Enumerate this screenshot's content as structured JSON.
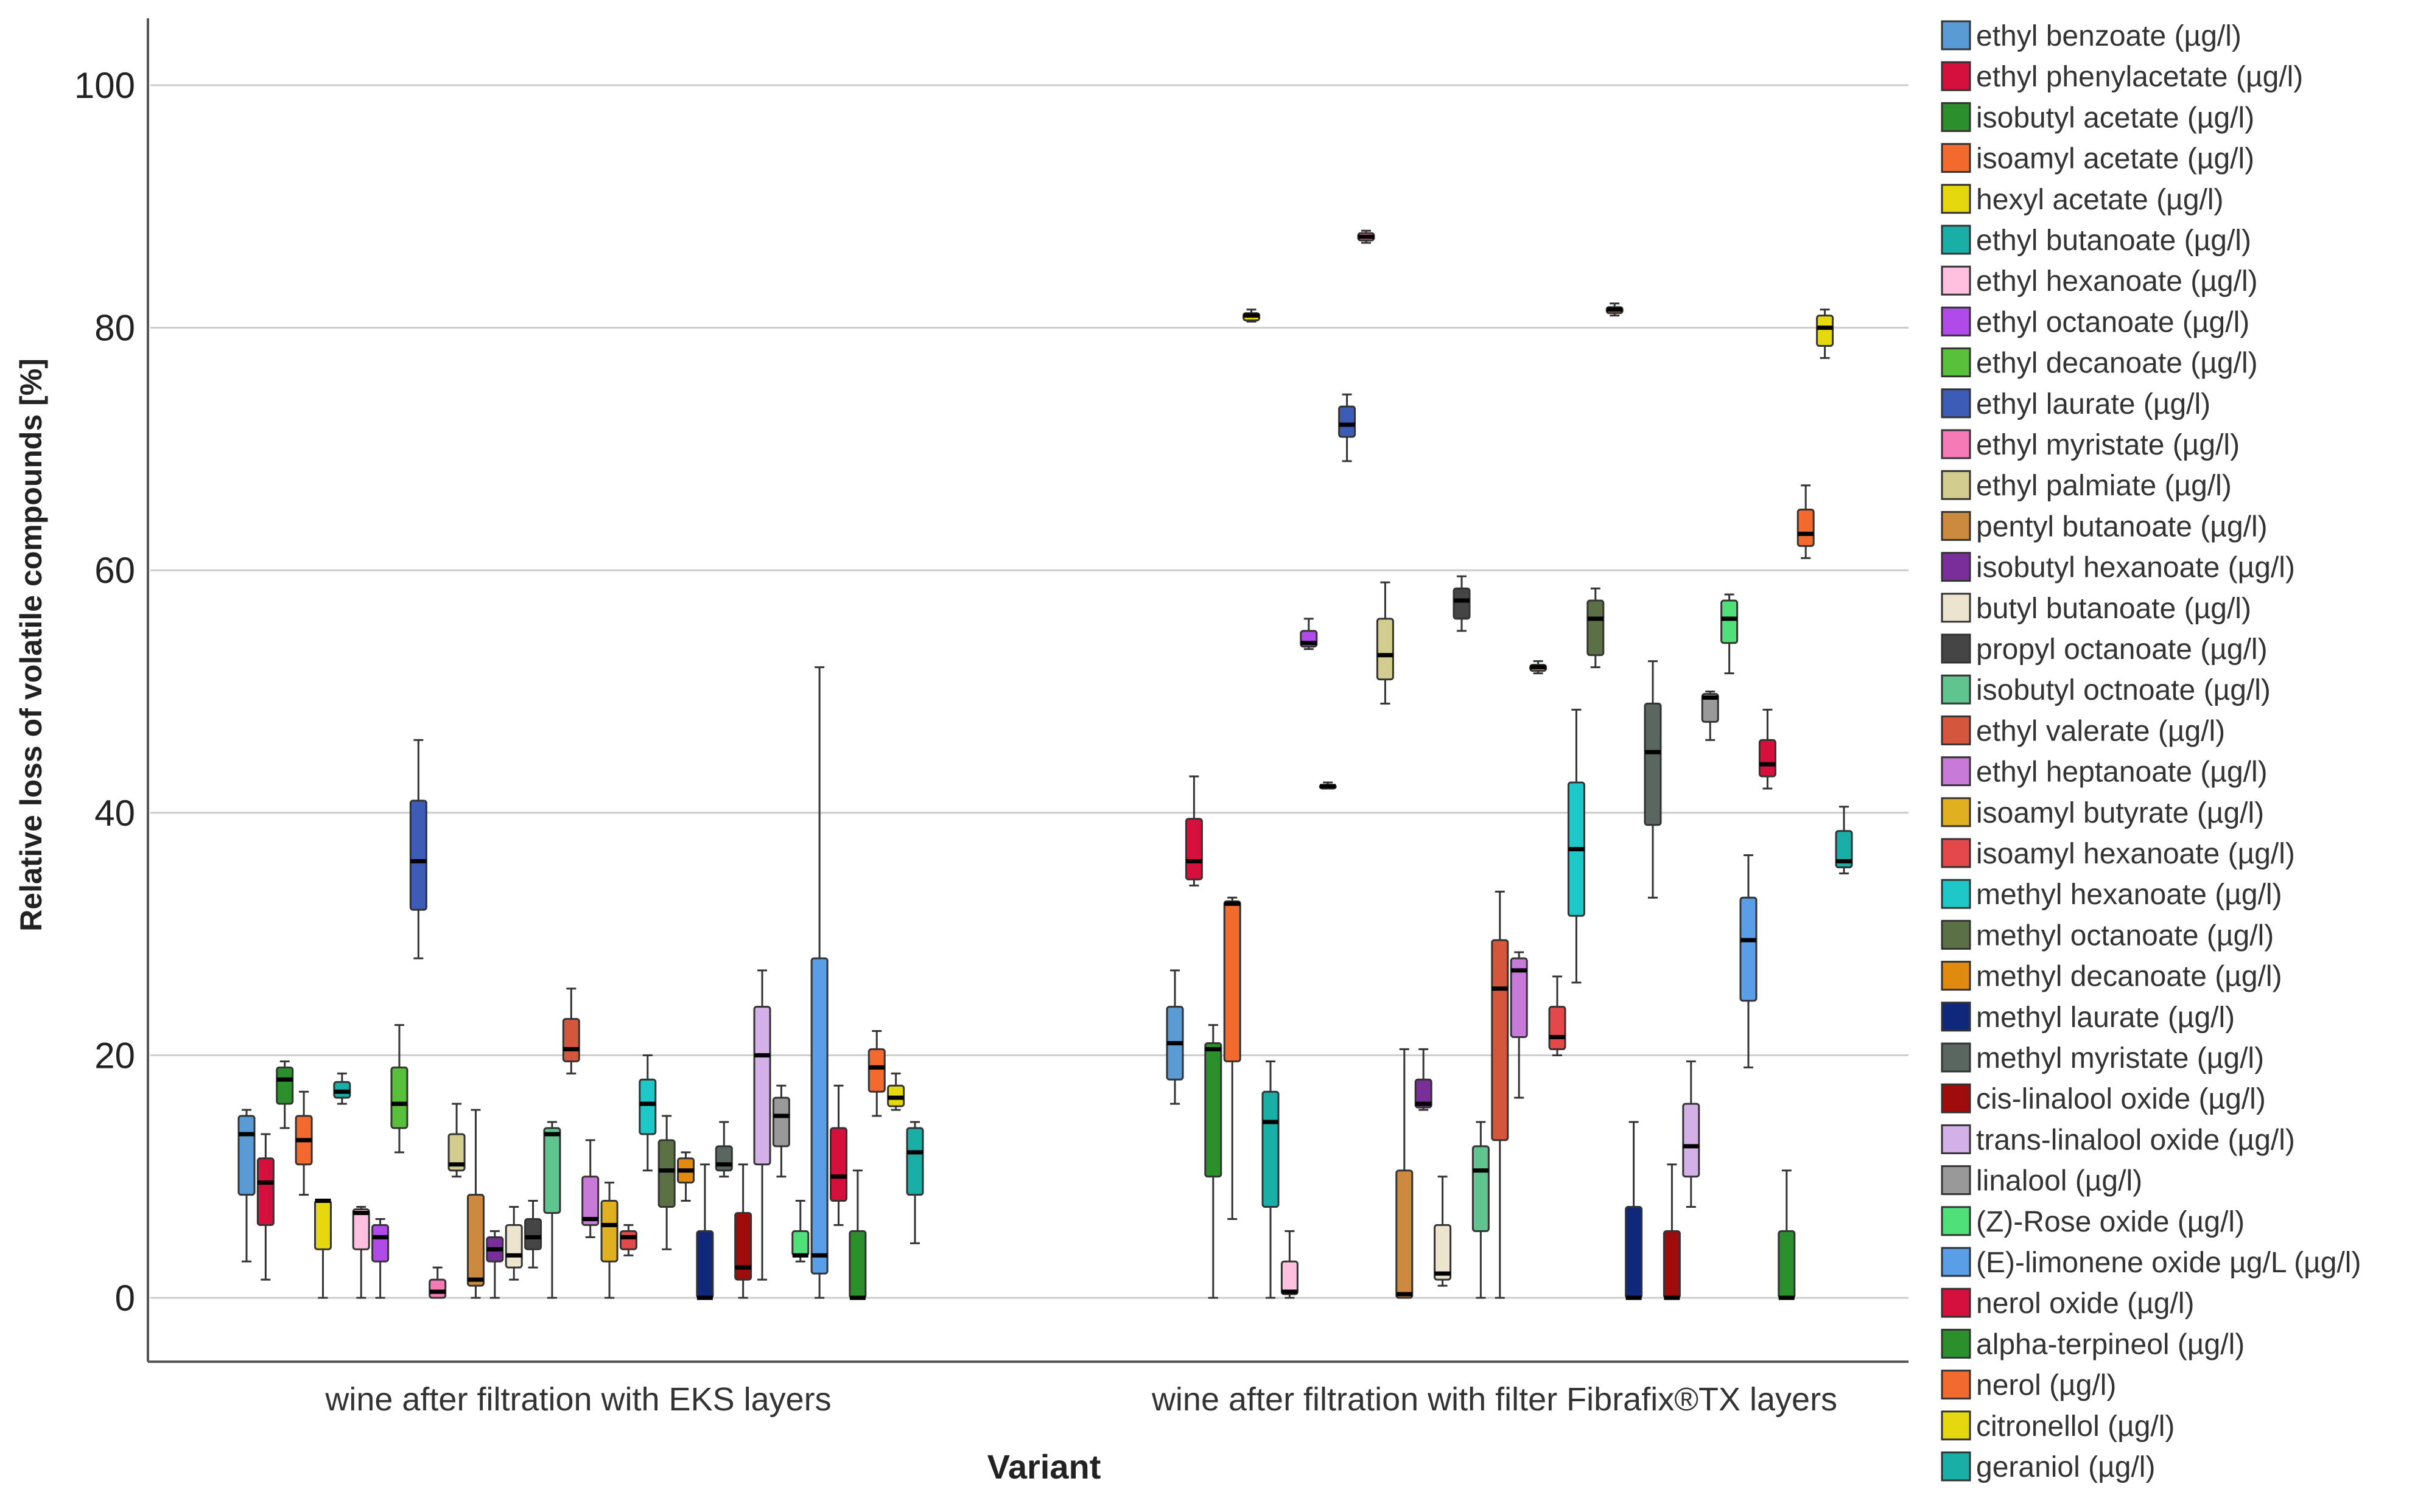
{
  "chart_data": {
    "type": "boxplot",
    "title": "",
    "xlabel": "Variant",
    "ylabel": "Relative loss of volatile compounds [%]",
    "ylim": [
      -5.3,
      106
    ],
    "yticks": [
      0,
      20,
      40,
      60,
      80,
      100
    ],
    "grid": true,
    "legend_position": "right",
    "categories": [
      "wine after filtration with EKS layers",
      "wine after filtration with filter  Fibrafix®TX layers"
    ],
    "series": [
      {
        "name": "ethyl benzoate (µg/l)",
        "color": "#5b9bd5",
        "groups": [
          {
            "min": 3,
            "q1": 8.5,
            "median": 13.5,
            "q3": 15,
            "max": 15.5
          },
          {
            "min": 16,
            "q1": 18,
            "median": 21,
            "q3": 24,
            "max": 27
          }
        ]
      },
      {
        "name": "ethyl phenylacetate (µg/l)",
        "color": "#d6103c",
        "groups": [
          {
            "min": 1.5,
            "q1": 6,
            "median": 9.5,
            "q3": 11.5,
            "max": 13.5
          },
          {
            "min": 34,
            "q1": 34.5,
            "median": 36,
            "q3": 39.5,
            "max": 43
          }
        ]
      },
      {
        "name": "isobutyl acetate (µg/l)",
        "color": "#2b8f2b",
        "groups": [
          {
            "min": 14,
            "q1": 16,
            "median": 18,
            "q3": 19,
            "max": 19.5
          },
          {
            "min": 0,
            "q1": 10,
            "median": 20.5,
            "q3": 21,
            "max": 22.5
          }
        ]
      },
      {
        "name": "isoamyl acetate (µg/l)",
        "color": "#f26a2e",
        "groups": [
          {
            "min": 8.5,
            "q1": 11,
            "median": 13,
            "q3": 15,
            "max": 17
          },
          {
            "min": 6.5,
            "q1": 19.5,
            "median": 32.5,
            "q3": 32.7,
            "max": 33
          }
        ]
      },
      {
        "name": "hexyl acetate (µg/l)",
        "color": "#e5d80e",
        "groups": [
          {
            "min": 0,
            "q1": 4,
            "median": 8,
            "q3": 8,
            "max": 8
          },
          {
            "min": 80.5,
            "q1": 80.6,
            "median": 81,
            "q3": 81.2,
            "max": 81.5
          }
        ]
      },
      {
        "name": "ethyl butanoate (µg/l)",
        "color": "#1aafa6",
        "groups": [
          {
            "min": 16,
            "q1": 16.5,
            "median": 17,
            "q3": 17.8,
            "max": 18.5
          },
          {
            "min": 0,
            "q1": 7.5,
            "median": 14.5,
            "q3": 17,
            "max": 19.5
          }
        ]
      },
      {
        "name": "ethyl hexanoate (µg/l)",
        "color": "#ffc0e0",
        "groups": [
          {
            "min": 0,
            "q1": 4,
            "median": 7,
            "q3": 7.3,
            "max": 7.5
          },
          {
            "min": 0,
            "q1": 0.3,
            "median": 0.5,
            "q3": 3,
            "max": 5.5
          }
        ]
      },
      {
        "name": "ethyl octanoate (µg/l)",
        "color": "#b04ae8",
        "groups": [
          {
            "min": 0,
            "q1": 3,
            "median": 5,
            "q3": 6,
            "max": 6.5
          },
          {
            "min": 53.5,
            "q1": 53.7,
            "median": 54,
            "q3": 55,
            "max": 56
          }
        ]
      },
      {
        "name": "ethyl decanoate (µg/l)",
        "color": "#58c03a",
        "groups": [
          {
            "min": 12,
            "q1": 14,
            "median": 16,
            "q3": 19,
            "max": 22.5
          },
          {
            "min": 42,
            "q1": 42,
            "median": 42.2,
            "q3": 42.3,
            "max": 42.5
          }
        ]
      },
      {
        "name": "ethyl laurate (µg/l)",
        "color": "#3c5cb8",
        "groups": [
          {
            "min": 28,
            "q1": 32,
            "median": 36,
            "q3": 41,
            "max": 46
          },
          {
            "min": 69,
            "q1": 71,
            "median": 72,
            "q3": 73.5,
            "max": 74.5
          }
        ]
      },
      {
        "name": "ethyl myristate (µg/l)",
        "color": "#f57ab5",
        "groups": [
          {
            "min": 0,
            "q1": 0,
            "median": 0.5,
            "q3": 1.5,
            "max": 2.5
          },
          {
            "min": 87,
            "q1": 87.2,
            "median": 87.5,
            "q3": 87.8,
            "max": 88
          }
        ]
      },
      {
        "name": "ethyl palmiate (µg/l)",
        "color": "#d2cd8e",
        "groups": [
          {
            "min": 10,
            "q1": 10.5,
            "median": 11,
            "q3": 13.5,
            "max": 16
          },
          {
            "min": 49,
            "q1": 51,
            "median": 53,
            "q3": 56,
            "max": 59
          }
        ]
      },
      {
        "name": "pentyl butanoate (µg/l)",
        "color": "#cc8a3e",
        "groups": [
          {
            "min": 0,
            "q1": 1,
            "median": 1.5,
            "q3": 8.5,
            "max": 15.5
          },
          {
            "min": 0,
            "q1": 0,
            "median": 0.3,
            "q3": 10.5,
            "max": 20.5
          }
        ]
      },
      {
        "name": "isobutyl hexanoate (µg/l)",
        "color": "#7a2e9a",
        "groups": [
          {
            "min": 0,
            "q1": 3,
            "median": 4,
            "q3": 5,
            "max": 5.5
          },
          {
            "min": 15.5,
            "q1": 15.7,
            "median": 16,
            "q3": 18,
            "max": 20.5
          }
        ]
      },
      {
        "name": "butyl butanoate (µg/l)",
        "color": "#ece4cf",
        "groups": [
          {
            "min": 1.5,
            "q1": 2.5,
            "median": 3.5,
            "q3": 6,
            "max": 7.5
          },
          {
            "min": 1,
            "q1": 1.5,
            "median": 2,
            "q3": 6,
            "max": 10
          }
        ]
      },
      {
        "name": "propyl octanoate (µg/l)",
        "color": "#454545",
        "groups": [
          {
            "min": 2.5,
            "q1": 4,
            "median": 5,
            "q3": 6.5,
            "max": 8
          },
          {
            "min": 55,
            "q1": 56,
            "median": 57.5,
            "q3": 58.5,
            "max": 59.5
          }
        ]
      },
      {
        "name": "isobutyl octnoate (µg/l)",
        "color": "#5fc48e",
        "groups": [
          {
            "min": 0,
            "q1": 7,
            "median": 13.5,
            "q3": 14,
            "max": 14.5
          },
          {
            "min": 0,
            "q1": 5.5,
            "median": 10.5,
            "q3": 12.5,
            "max": 14.5
          }
        ]
      },
      {
        "name": "ethyl valerate (µg/l)",
        "color": "#d4573d",
        "groups": [
          {
            "min": 18.5,
            "q1": 19.5,
            "median": 20.5,
            "q3": 23,
            "max": 25.5
          },
          {
            "min": 0,
            "q1": 13,
            "median": 25.5,
            "q3": 29.5,
            "max": 33.5
          }
        ]
      },
      {
        "name": "ethyl heptanoate (µg/l)",
        "color": "#c77ad8",
        "groups": [
          {
            "min": 5,
            "q1": 6,
            "median": 6.5,
            "q3": 10,
            "max": 13
          },
          {
            "min": 16.5,
            "q1": 21.5,
            "median": 27,
            "q3": 28,
            "max": 28.5
          }
        ]
      },
      {
        "name": "isoamyl butyrate (µg/l)",
        "color": "#e0b020",
        "groups": [
          {
            "min": 0,
            "q1": 3,
            "median": 6,
            "q3": 8,
            "max": 9.5
          },
          {
            "min": 51.5,
            "q1": 51.7,
            "median": 52,
            "q3": 52.2,
            "max": 52.5
          }
        ]
      },
      {
        "name": "isoamyl hexanoate (µg/l)",
        "color": "#e5484a",
        "groups": [
          {
            "min": 3.5,
            "q1": 4,
            "median": 5,
            "q3": 5.5,
            "max": 6
          },
          {
            "min": 20,
            "q1": 20.5,
            "median": 21.5,
            "q3": 24,
            "max": 26.5
          }
        ]
      },
      {
        "name": "methyl hexanoate (µg/l)",
        "color": "#1ec8c8",
        "groups": [
          {
            "min": 10.5,
            "q1": 13.5,
            "median": 16,
            "q3": 18,
            "max": 20
          },
          {
            "min": 26,
            "q1": 31.5,
            "median": 37,
            "q3": 42.5,
            "max": 48.5
          }
        ]
      },
      {
        "name": "methyl octanoate (µg/l)",
        "color": "#5c7045",
        "groups": [
          {
            "min": 4,
            "q1": 7.5,
            "median": 10.5,
            "q3": 13,
            "max": 15
          },
          {
            "min": 52,
            "q1": 53,
            "median": 56,
            "q3": 57.5,
            "max": 58.5
          }
        ]
      },
      {
        "name": "methyl decanoate (µg/l)",
        "color": "#e08a10",
        "groups": [
          {
            "min": 8,
            "q1": 9.5,
            "median": 10.5,
            "q3": 11.5,
            "max": 12
          },
          {
            "min": 81,
            "q1": 81.2,
            "median": 81.5,
            "q3": 81.7,
            "max": 82
          }
        ]
      },
      {
        "name": "methyl laurate (µg/l)",
        "color": "#10287a",
        "groups": [
          {
            "min": 0,
            "q1": 0,
            "median": 0,
            "q3": 5.5,
            "max": 11
          },
          {
            "min": 0,
            "q1": 0,
            "median": 0,
            "q3": 7.5,
            "max": 14.5
          }
        ]
      },
      {
        "name": "methyl myristate (µg/l)",
        "color": "#5a6660",
        "groups": [
          {
            "min": 10,
            "q1": 10.5,
            "median": 11,
            "q3": 12.5,
            "max": 14.5
          },
          {
            "min": 33,
            "q1": 39,
            "median": 45,
            "q3": 49,
            "max": 52.5
          }
        ]
      },
      {
        "name": "cis-linalool oxide (µg/l)",
        "color": "#a00c0c",
        "groups": [
          {
            "min": 0,
            "q1": 1.5,
            "median": 2.5,
            "q3": 7,
            "max": 11
          },
          {
            "min": 0,
            "q1": 0,
            "median": 0,
            "q3": 5.5,
            "max": 11
          }
        ]
      },
      {
        "name": "trans-linalool oxide (µg/l)",
        "color": "#d4b0e8",
        "groups": [
          {
            "min": 1.5,
            "q1": 11,
            "median": 20,
            "q3": 24,
            "max": 27
          },
          {
            "min": 7.5,
            "q1": 10,
            "median": 12.5,
            "q3": 16,
            "max": 19.5
          }
        ]
      },
      {
        "name": "linalool (µg/l)",
        "color": "#999999",
        "groups": [
          {
            "min": 10,
            "q1": 12.5,
            "median": 15,
            "q3": 16.5,
            "max": 17.5
          },
          {
            "min": 46,
            "q1": 47.5,
            "median": 49.5,
            "q3": 49.8,
            "max": 50
          }
        ]
      },
      {
        "name": "(Z)-Rose oxide (µg/l)",
        "color": "#4fe07a",
        "groups": [
          {
            "min": 3,
            "q1": 3.5,
            "median": 3.5,
            "q3": 5.5,
            "max": 8
          },
          {
            "min": 51.5,
            "q1": 54,
            "median": 56,
            "q3": 57.5,
            "max": 58
          }
        ]
      },
      {
        "name": "(E)-limonene oxide µg/L (µg/l)",
        "color": "#5a9ee8",
        "groups": [
          {
            "min": 0,
            "q1": 2,
            "median": 3.5,
            "q3": 28,
            "max": 52
          },
          {
            "min": 19,
            "q1": 24.5,
            "median": 29.5,
            "q3": 33,
            "max": 36.5
          }
        ]
      },
      {
        "name": "nerol oxide  (µg/l)",
        "color": "#d6103c",
        "groups": [
          {
            "min": 6,
            "q1": 8,
            "median": 10,
            "q3": 14,
            "max": 17.5
          },
          {
            "min": 42,
            "q1": 43,
            "median": 44,
            "q3": 46,
            "max": 48.5
          }
        ]
      },
      {
        "name": "alpha-terpineol (µg/l)",
        "color": "#2b8f2b",
        "groups": [
          {
            "min": 0,
            "q1": 0,
            "median": 0,
            "q3": 5.5,
            "max": 10.5
          },
          {
            "min": 0,
            "q1": 0,
            "median": 0,
            "q3": 5.5,
            "max": 10.5
          }
        ]
      },
      {
        "name": "nerol (µg/l)",
        "color": "#f26a2e",
        "groups": [
          {
            "min": 15,
            "q1": 17,
            "median": 19,
            "q3": 20.5,
            "max": 22
          },
          {
            "min": 61,
            "q1": 62,
            "median": 63,
            "q3": 65,
            "max": 67
          }
        ]
      },
      {
        "name": "citronellol (µg/l)",
        "color": "#e5d80e",
        "groups": [
          {
            "min": 15.5,
            "q1": 15.8,
            "median": 16.5,
            "q3": 17.5,
            "max": 18.5
          },
          {
            "min": 77.5,
            "q1": 78.5,
            "median": 80,
            "q3": 81,
            "max": 81.5
          }
        ]
      },
      {
        "name": "geraniol (µg/l)",
        "color": "#1aafa6",
        "groups": [
          {
            "min": 4.5,
            "q1": 8.5,
            "median": 12,
            "q3": 14,
            "max": 14.5
          },
          {
            "min": 35,
            "q1": 35.5,
            "median": 36,
            "q3": 38.5,
            "max": 40.5
          }
        ]
      }
    ]
  }
}
